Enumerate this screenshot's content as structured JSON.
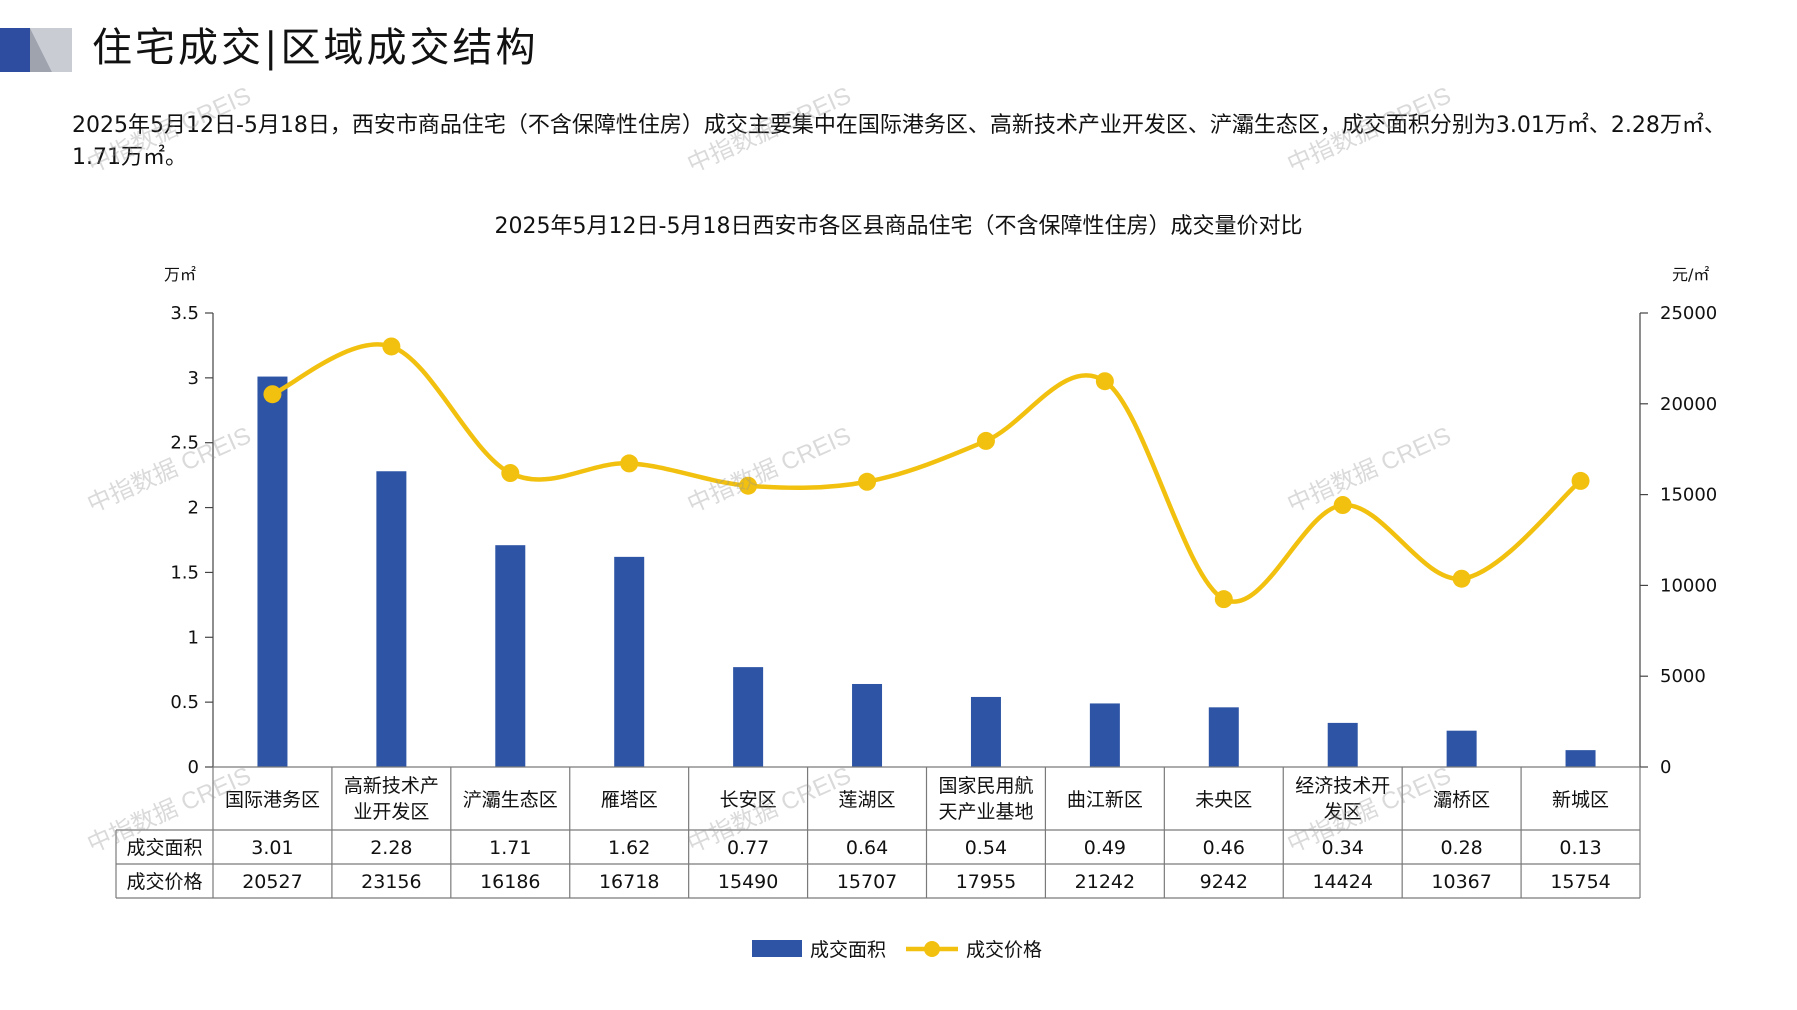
{
  "header": {
    "title": "住宅成交|区域成交结构",
    "summary": "2025年5月12日-5月18日，西安市商品住宅（不含保障性住房）成交主要集中在国际港务区、高新技术产业开发区、浐灞生态区，成交面积分别为3.01万㎡、2.28万㎡、1.71万㎡。"
  },
  "watermark": "中指数据 CREIS",
  "chart_data": {
    "type": "bar",
    "title": "2025年5月12日-5月18日西安市各区县商品住宅（不含保障性住房）成交量价对比",
    "y_left_unit": "万㎡",
    "y_right_unit": "元/㎡",
    "y_left_ticks": [
      "3.5",
      "3",
      "2.5",
      "2",
      "1.5",
      "1",
      "0.5",
      "0"
    ],
    "y_right_ticks": [
      "25000",
      "20000",
      "15000",
      "10000",
      "5000",
      "0"
    ],
    "ylim_left": [
      0,
      3.5
    ],
    "ylim_right": [
      0,
      25000
    ],
    "categories": [
      "国际港务区",
      "高新技术产业开发区",
      "浐灞生态区",
      "雁塔区",
      "长安区",
      "莲湖区",
      "国家民用航天产业基地",
      "曲江新区",
      "未央区",
      "经济技术开发区",
      "灞桥区",
      "新城区"
    ],
    "category_lines": [
      [
        "国际港务区"
      ],
      [
        "高新技术产",
        "业开发区"
      ],
      [
        "浐灞生态区"
      ],
      [
        "雁塔区"
      ],
      [
        "长安区"
      ],
      [
        "莲湖区"
      ],
      [
        "国家民用航",
        "天产业基地"
      ],
      [
        "曲江新区"
      ],
      [
        "未央区"
      ],
      [
        "经济技术开",
        "发区"
      ],
      [
        "灞桥区"
      ],
      [
        "新城区"
      ]
    ],
    "series": [
      {
        "name": "成交面积",
        "type": "bar",
        "axis": "left",
        "color": "#2E55A5",
        "values": [
          3.01,
          2.28,
          1.71,
          1.62,
          0.77,
          0.64,
          0.54,
          0.49,
          0.46,
          0.34,
          0.28,
          0.13
        ],
        "labels": [
          "3.01",
          "2.28",
          "1.71",
          "1.62",
          "0.77",
          "0.64",
          "0.54",
          "0.49",
          "0.46",
          "0.34",
          "0.28",
          "0.13"
        ]
      },
      {
        "name": "成交价格",
        "type": "line",
        "axis": "right",
        "color": "#F2C10F",
        "values": [
          20527,
          23156,
          16186,
          16718,
          15490,
          15707,
          17955,
          21242,
          9242,
          14424,
          10367,
          15754
        ],
        "labels": [
          "20527",
          "23156",
          "16186",
          "16718",
          "15490",
          "15707",
          "17955",
          "21242",
          "9242",
          "14424",
          "10367",
          "15754"
        ]
      }
    ],
    "legend_placement": "bottom",
    "grid": false
  },
  "colors": {
    "bar": "#2E55A5",
    "line": "#F2C10F",
    "logo_blue": "#2E4DA0",
    "logo_gray": "#9EA3AE"
  }
}
